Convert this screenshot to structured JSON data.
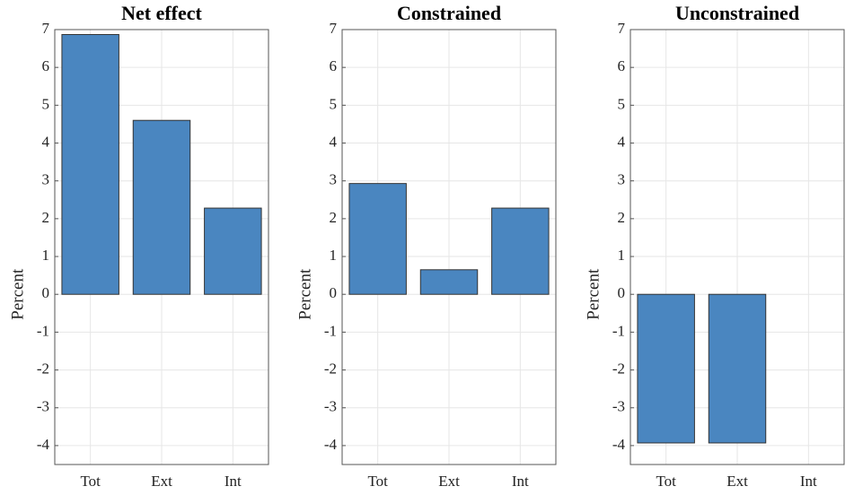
{
  "chart_data": [
    {
      "type": "bar",
      "title": "Net effect",
      "ylabel": "Percent",
      "categories": [
        "Tot",
        "Ext",
        "Int"
      ],
      "values": [
        6.87,
        4.6,
        2.28
      ],
      "color": "#4a86c0",
      "ylim": [
        -4.5,
        7
      ],
      "yticks": [
        -4,
        -3,
        -2,
        -1,
        0,
        1,
        2,
        3,
        4,
        5,
        6,
        7
      ],
      "grid": true
    },
    {
      "type": "bar",
      "title": "Constrained",
      "ylabel": "Percent",
      "categories": [
        "Tot",
        "Ext",
        "Int"
      ],
      "values": [
        2.93,
        0.65,
        2.28
      ],
      "color": "#4a86c0",
      "ylim": [
        -4.5,
        7
      ],
      "yticks": [
        -4,
        -3,
        -2,
        -1,
        0,
        1,
        2,
        3,
        4,
        5,
        6,
        7
      ],
      "grid": true
    },
    {
      "type": "bar",
      "title": "Unconstrained",
      "ylabel": "Percent",
      "categories": [
        "Tot",
        "Ext",
        "Int"
      ],
      "values": [
        -3.93,
        -3.93,
        0
      ],
      "color": "#4a86c0",
      "ylim": [
        -4.5,
        7
      ],
      "yticks": [
        -4,
        -3,
        -2,
        -1,
        0,
        1,
        2,
        3,
        4,
        5,
        6,
        7
      ],
      "grid": true
    }
  ]
}
